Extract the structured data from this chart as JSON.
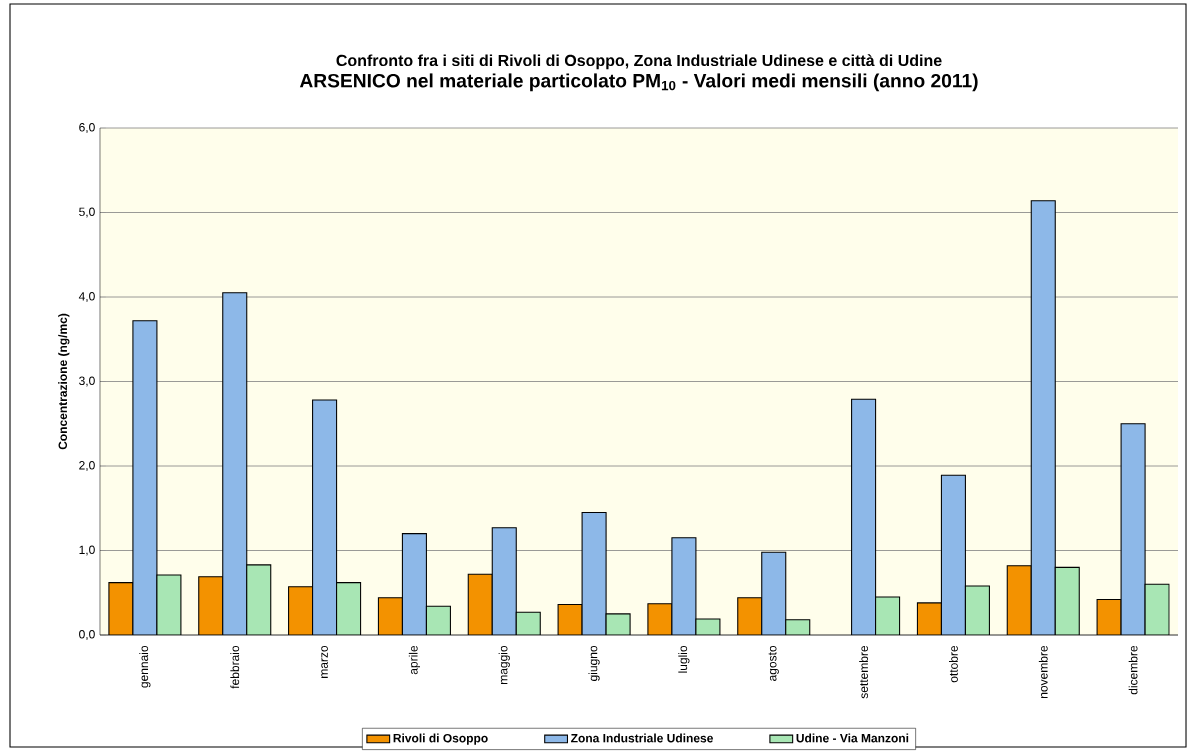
{
  "chart_data": {
    "type": "bar",
    "title": "Confronto fra i siti di Rivoli di Osoppo, Zona Industriale Udinese e città di Udine",
    "subtitle": "ARSENICO nel materiale particolato PM$_{10}$ - Valori medi mensili (anno 2011)",
    "ylabel": "Concentrazione (ng/mc)",
    "categories": [
      "gennaio",
      "febbraio",
      "marzo",
      "aprile",
      "maggio",
      "giugno",
      "luglio",
      "agosto",
      "settembre",
      "ottobre",
      "novembre",
      "dicembre"
    ],
    "series": [
      {
        "name": "Rivoli di Osoppo",
        "color": "#f39200",
        "values": [
          0.62,
          0.69,
          0.57,
          0.44,
          0.72,
          0.36,
          0.37,
          0.44,
          null,
          0.38,
          0.82,
          0.42
        ]
      },
      {
        "name": "Zona Industriale Udinese",
        "color": "#8db8e8",
        "values": [
          3.72,
          4.05,
          2.78,
          1.2,
          1.27,
          1.45,
          1.15,
          0.98,
          2.79,
          1.89,
          5.14,
          2.5
        ]
      },
      {
        "name": "Udine - Via Manzoni",
        "color": "#a8e6b4",
        "values": [
          0.71,
          0.83,
          0.62,
          0.34,
          0.27,
          0.25,
          0.19,
          0.18,
          0.45,
          0.58,
          0.8,
          0.6
        ]
      }
    ],
    "ylim": [
      0,
      6
    ],
    "yticks": [
      {
        "value": 0,
        "label": "0,0"
      },
      {
        "value": 1,
        "label": "1,0"
      },
      {
        "value": 2,
        "label": "2,0"
      },
      {
        "value": 3,
        "label": "3,0"
      },
      {
        "value": 4,
        "label": "4,0"
      },
      {
        "value": 5,
        "label": "5,0"
      },
      {
        "value": 6,
        "label": "6,0"
      }
    ],
    "grid": "y",
    "legend": "bottom"
  }
}
